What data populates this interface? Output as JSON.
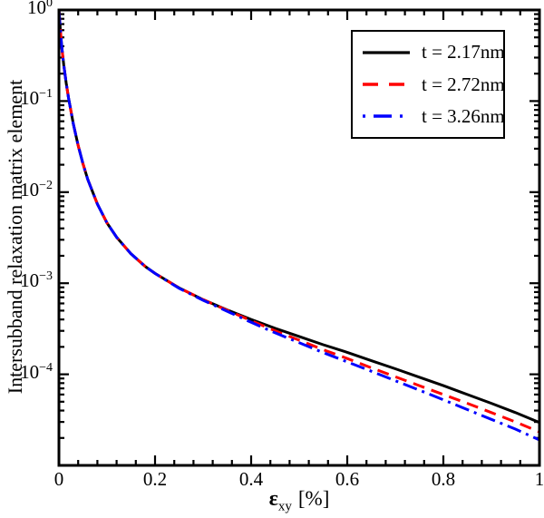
{
  "figure": {
    "background": "#ffffff",
    "frame_color": "#000000"
  },
  "chart_data": {
    "type": "line",
    "title": "",
    "x_scale": "linear",
    "y_scale": "log",
    "xlabel": {
      "symbol": "ε",
      "subscript": "xy",
      "unit": "[%]"
    },
    "ylabel": "Intersubband relaxation matrix element",
    "x_axis": {
      "min": 0,
      "max": 1,
      "major_tick_values": [
        0,
        0.2,
        0.4,
        0.6,
        0.8,
        1
      ],
      "major_tick_labels": [
        "0",
        "0.2",
        "0.4",
        "0.6",
        "0.8",
        "1"
      ],
      "minor_tick_step": 0.04
    },
    "y_axis": {
      "max_exponent": 0,
      "min_exponent": -5,
      "tick_label_base": "10",
      "labeled_exponents": [
        0,
        -1,
        -2,
        -3,
        -4
      ],
      "minor_ticks": "log decades 2-9"
    },
    "legend": {
      "position": "top-right",
      "border_color": "#000000"
    },
    "grid": false,
    "x": [
      0,
      0.0015,
      0.003,
      0.006,
      0.01,
      0.015,
      0.02,
      0.03,
      0.04,
      0.05,
      0.06,
      0.08,
      0.1,
      0.12,
      0.15,
      0.18,
      0.2,
      0.25,
      0.3,
      0.35,
      0.4,
      0.45,
      0.5,
      0.55,
      0.6,
      0.65,
      0.7,
      0.75,
      0.8,
      0.85,
      0.9,
      0.95,
      1.0
    ],
    "series": [
      {
        "name": "t = 2.17nm",
        "color": "#000000",
        "line_style": "solid",
        "values": [
          1.0,
          0.78,
          0.6,
          0.385,
          0.25,
          0.158,
          0.108,
          0.056,
          0.0325,
          0.0205,
          0.0138,
          0.0074,
          0.0046,
          0.0032,
          0.0021,
          0.00152,
          0.00128,
          0.00089,
          0.00066,
          0.00051,
          0.0004,
          0.00032,
          0.00026,
          0.000211,
          0.000174,
          0.000141,
          0.000115,
          9.3e-05,
          7.5e-05,
          6e-05,
          4.8e-05,
          3.8e-05,
          2.95e-05
        ]
      },
      {
        "name": "t = 2.72nm",
        "color": "#ff0000",
        "line_style": "dashed",
        "values": [
          1.0,
          0.78,
          0.6,
          0.385,
          0.25,
          0.158,
          0.108,
          0.056,
          0.0325,
          0.0205,
          0.0138,
          0.0074,
          0.0046,
          0.0032,
          0.0021,
          0.00152,
          0.00128,
          0.00089,
          0.00066,
          0.000505,
          0.000388,
          0.0003,
          0.000237,
          0.000186,
          0.000149,
          0.000118,
          9.4e-05,
          7.5e-05,
          6e-05,
          4.8e-05,
          3.8e-05,
          3e-05,
          2.33e-05
        ]
      },
      {
        "name": "t = 3.26nm",
        "color": "#0000ff",
        "line_style": "dash-dot",
        "values": [
          1.0,
          0.78,
          0.6,
          0.385,
          0.25,
          0.158,
          0.108,
          0.056,
          0.0325,
          0.0205,
          0.0138,
          0.0074,
          0.0046,
          0.0032,
          0.0021,
          0.00152,
          0.00128,
          0.00088,
          0.00065,
          0.000492,
          0.000372,
          0.000285,
          0.000222,
          0.000173,
          0.000137,
          0.000108,
          8.5e-05,
          6.7e-05,
          5.25e-05,
          4.1e-05,
          3.2e-05,
          2.5e-05,
          1.9e-05
        ]
      }
    ]
  }
}
